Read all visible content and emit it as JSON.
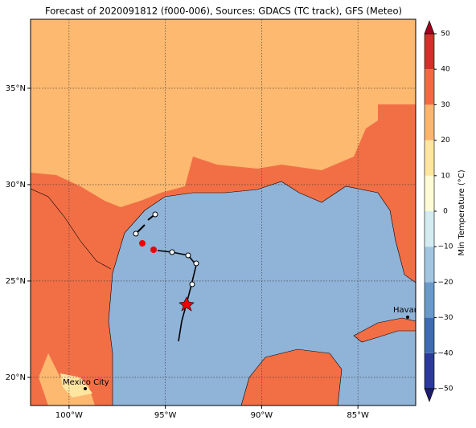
{
  "title": "Forecast of 2020091812 (f000-006), Sources: GDACS (TC track), GFS (Meteo)",
  "map": {
    "xlim": [
      -102,
      -82
    ],
    "ylim": [
      18.54,
      38.58
    ],
    "xticks": [
      {
        "value": -100,
        "label": "100°W"
      },
      {
        "value": -95,
        "label": "95°W"
      },
      {
        "value": -90,
        "label": "90°W"
      },
      {
        "value": -85,
        "label": "85°W"
      }
    ],
    "yticks": [
      {
        "value": 20,
        "label": "20°N"
      },
      {
        "value": 25,
        "label": "25°N"
      },
      {
        "value": 30,
        "label": "30°N"
      },
      {
        "value": 35,
        "label": "35°N"
      }
    ],
    "grid": true,
    "cities": [
      "Havana",
      "Mexico City"
    ]
  },
  "colorbar": {
    "label": "Min Temperature (°C)",
    "lim": [
      -50,
      50
    ],
    "ticks": [
      {
        "value": -50,
        "label": "−50"
      },
      {
        "value": -40,
        "label": "−40"
      },
      {
        "value": -30,
        "label": "−30"
      },
      {
        "value": -20,
        "label": "−20"
      },
      {
        "value": -10,
        "label": "−10"
      },
      0,
      10,
      20,
      30,
      40,
      50
    ],
    "colors": [
      "#2b3a9a",
      "#3f6bb2",
      "#6a9ac8",
      "#a3c6e0",
      "#d4ebf2",
      "#fffbd6",
      "#fee6a0",
      "#fdb46c",
      "#f26a43",
      "#d2302a"
    ],
    "under": "#1e1e6e",
    "over": "#a0001e"
  }
}
